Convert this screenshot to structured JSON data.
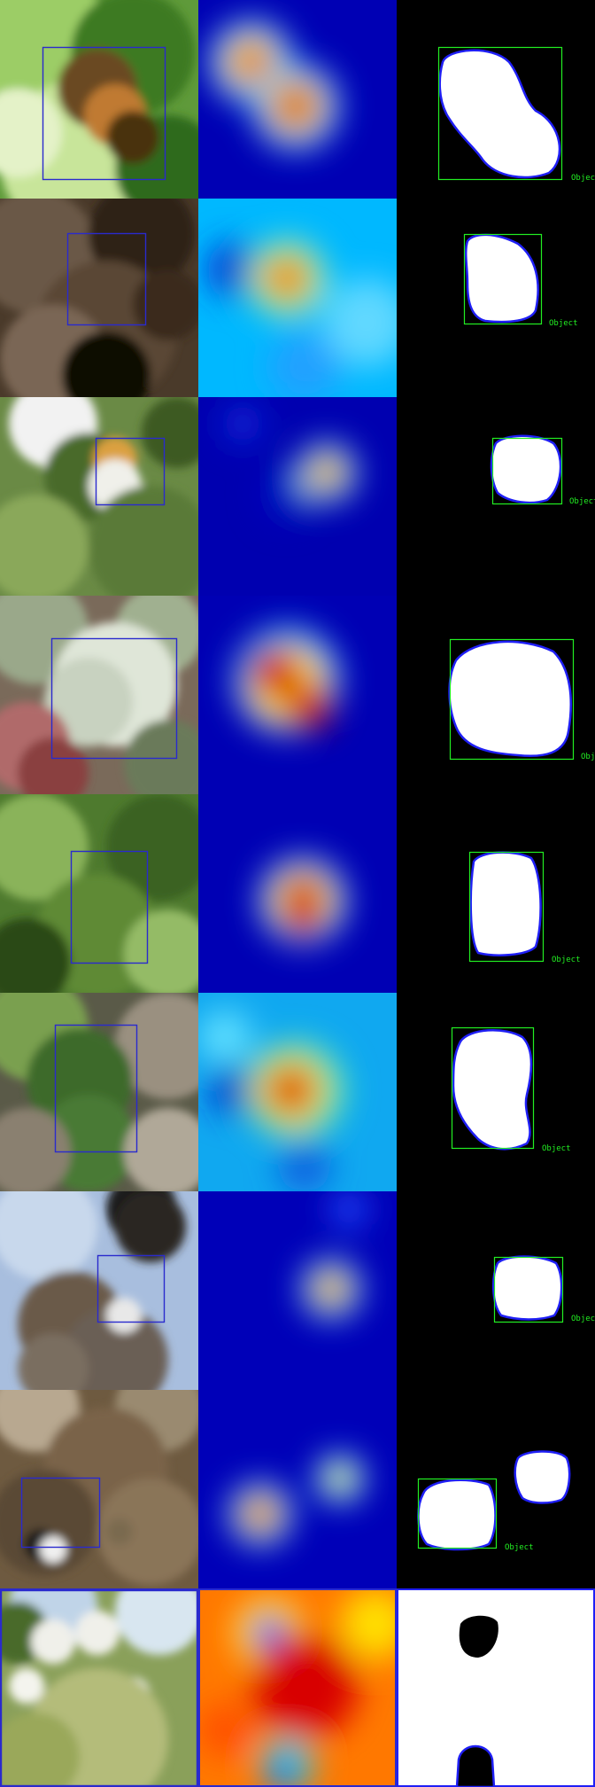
{
  "figure": {
    "rows": [
      {
        "scene": "caterpillar-on-leaf",
        "box_label": "Object"
      },
      {
        "scene": "tree-bark-log",
        "box_label": "Object"
      },
      {
        "scene": "butterfly-on-white-flowers",
        "box_label": "Object"
      },
      {
        "scene": "pale-leaves-bush",
        "box_label": "Object"
      },
      {
        "scene": "small-white-flowers-in-grass",
        "box_label": "Object"
      },
      {
        "scene": "green-plant-on-dry-leaves",
        "box_label": "Object"
      },
      {
        "scene": "stork-nest-on-roof",
        "box_label": "Object"
      },
      {
        "scene": "ducks-on-water",
        "box_label": "Object"
      },
      {
        "scene": "meadow-white-umbels",
        "box_label": ""
      }
    ],
    "columns": [
      "input-with-box",
      "attention-heatmap",
      "binary-mask-with-box"
    ]
  },
  "colors": {
    "pred_box": "#2a2acd",
    "mask_box": "#22ee22",
    "mask_outline": "#1f1ff5",
    "mask_fill": "#ffffff",
    "heat_low": "#0000aa",
    "heat_high": "#aa0000"
  }
}
